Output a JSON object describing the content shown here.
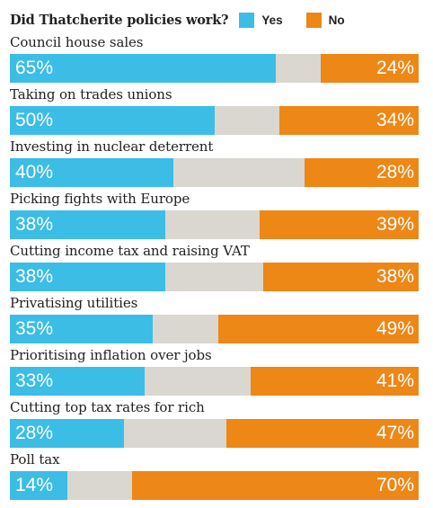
{
  "colors": {
    "yes": "#3bbde6",
    "no": "#ed8716",
    "neutral": "#dad7d0",
    "text": "#222222"
  },
  "chart_data": {
    "type": "bar",
    "title": "Did Thatcherite policies work?",
    "legend": [
      {
        "name": "Yes",
        "color": "#3bbde6"
      },
      {
        "name": "No",
        "color": "#ed8716"
      }
    ],
    "categories": [
      "Council house sales",
      "Taking on trades unions",
      "Investing in nuclear deterrent",
      "Picking fights with Europe",
      "Cutting income tax and raising VAT",
      "Privatising utilities",
      "Prioritising inflation over jobs",
      "Cutting top tax rates for rich",
      "Poll tax"
    ],
    "series": [
      {
        "name": "Yes",
        "values": [
          65,
          50,
          40,
          38,
          38,
          35,
          33,
          28,
          14
        ]
      },
      {
        "name": "No",
        "values": [
          24,
          34,
          28,
          39,
          38,
          49,
          41,
          47,
          70
        ]
      }
    ],
    "value_format": "{v}%",
    "stacked": true,
    "orientation": "horizontal",
    "xlim": [
      0,
      100
    ]
  }
}
